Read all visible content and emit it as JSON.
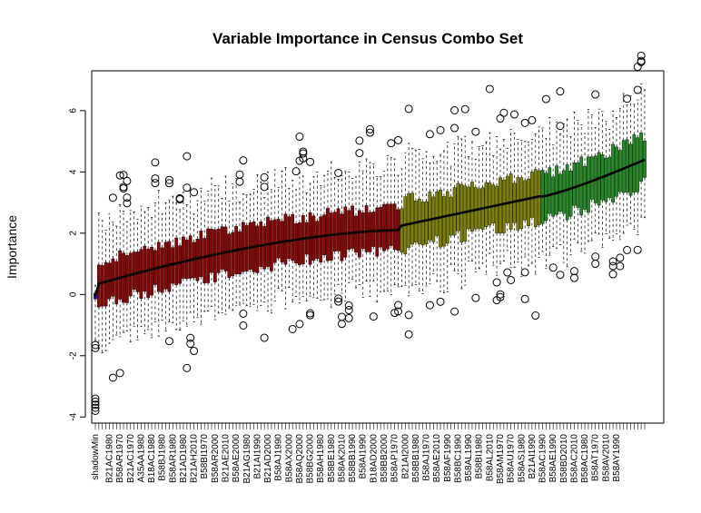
{
  "chart_data": {
    "type": "box",
    "title": "Variable Importance in Census Combo Set",
    "xlabel": "",
    "ylabel": "Importance",
    "ylim": [
      -4.2,
      7.3
    ],
    "yticks": [
      -4,
      -2,
      0,
      2,
      4,
      6
    ],
    "n_variables": 157,
    "shadow_count": 1,
    "rejected_count": 86,
    "tentative_count": 40,
    "confirmed_count": 30,
    "group_colors": {
      "shadow": "#0000cd",
      "rejected": "#8b0000",
      "tentative": "#808000",
      "confirmed": "#228b22"
    },
    "median_range": {
      "shadow": [
        -0.05,
        -0.05
      ],
      "rejected": [
        0.35,
        2.1
      ],
      "tentative": [
        2.25,
        3.2
      ],
      "confirmed": [
        3.2,
        4.4
      ]
    },
    "shadowMin_box": {
      "median": -0.05,
      "q1": -0.15,
      "q3": 0.05,
      "whisker_low": -1.5,
      "whisker_high": 0.3,
      "outliers": [
        -1.65,
        -1.75,
        -3.4,
        -3.5,
        -3.6,
        -3.7,
        -3.8
      ]
    },
    "labeled_categories": [
      "shadowMin",
      "B21AC1980",
      "B58AR1970",
      "B21AC1970",
      "A35AA1980",
      "B18AC1980",
      "B58BJ1980",
      "B58AR1980",
      "B21AD1980",
      "B21AH2010",
      "B58BI1970",
      "B58AR2000",
      "B21AE2010",
      "B58AE2000",
      "B21AG1980",
      "B21AI1990",
      "B21AD2000",
      "B58AJ1990",
      "B58AX2000",
      "B58AQ2000",
      "B58BG2000",
      "B58AH1980",
      "B58BE1980",
      "B58AK2010",
      "B58BB1990",
      "B58AI1990",
      "B18AD2000",
      "B58BB2000",
      "B58AP1970",
      "B21AI2000",
      "B58BB1980",
      "B58AJ1970",
      "B58AE2010",
      "B58AF1990",
      "B58BC1990",
      "B58AL1990",
      "B58BI1980",
      "B58AL2010",
      "B58AM1970",
      "B58AU1970",
      "B58AS1980",
      "B21AI1990",
      "B58AC1990",
      "B58AE1990",
      "B58BD2010",
      "B58AC2010",
      "B58AC1980",
      "B58AT1970",
      "B58AV2010",
      "B58AY1990"
    ]
  }
}
